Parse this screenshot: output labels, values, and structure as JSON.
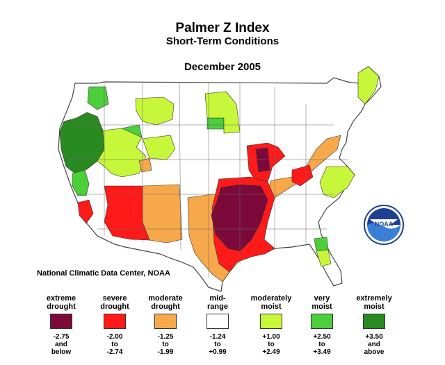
{
  "title": "Palmer Z Index",
  "subtitle": "Short-Term Conditions",
  "date": "December 2005",
  "source": "National Climatic Data Center, NOAA",
  "legend": [
    {
      "label_line1": "extreme",
      "label_line2": "drought",
      "range_line1": "-2.75",
      "range_line2": "and",
      "range_line3": "below",
      "color": "#7b0a3a"
    },
    {
      "label_line1": "severe",
      "label_line2": "drought",
      "range_line1": "-2.00",
      "range_line2": "to",
      "range_line3": "-2.74",
      "color": "#ff1a1a"
    },
    {
      "label_line1": "moderate",
      "label_line2": "drought",
      "range_line1": "-1.25",
      "range_line2": "to",
      "range_line3": "-1.99",
      "color": "#f7a84a"
    },
    {
      "label_line1": "mid-",
      "label_line2": "range",
      "range_line1": "-1.24",
      "range_line2": "to",
      "range_line3": "+0.99",
      "color": "#ffffff"
    },
    {
      "label_line1": "moderately",
      "label_line2": "moist",
      "range_line1": "+1.00",
      "range_line2": "to",
      "range_line3": "+2.49",
      "color": "#c7f73a"
    },
    {
      "label_line1": "very",
      "label_line2": "moist",
      "range_line1": "+2.50",
      "range_line2": "to",
      "range_line3": "+3.49",
      "color": "#4ccf3a"
    },
    {
      "label_line1": "extremely",
      "label_line2": "moist",
      "range_line1": "+3.50",
      "range_line2": "and",
      "range_line3": "above",
      "color": "#2a8a22"
    }
  ],
  "logo_text": "NOAA",
  "colors": {
    "extreme_drought": "#7b0a3a",
    "severe_drought": "#ff1a1a",
    "moderate_drought": "#f7a84a",
    "mid_range": "#ffffff",
    "moderately_moist": "#c7f73a",
    "very_moist": "#4ccf3a",
    "extremely_moist": "#2a8a22"
  }
}
